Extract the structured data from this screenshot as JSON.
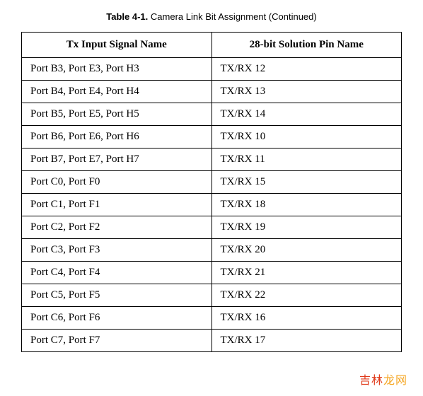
{
  "caption": {
    "label": "Table 4-1.",
    "title": "Camera Link Bit Assignment (Continued)"
  },
  "table": {
    "columns": [
      "Tx Input Signal Name",
      "28-bit Solution Pin Name"
    ],
    "rows": [
      [
        "Port B3, Port E3, Port H3",
        "TX/RX 12"
      ],
      [
        "Port B4, Port E4, Port H4",
        "TX/RX 13"
      ],
      [
        "Port B5, Port E5, Port H5",
        "TX/RX 14"
      ],
      [
        "Port B6, Port E6, Port H6",
        "TX/RX 10"
      ],
      [
        "Port B7, Port E7, Port H7",
        "TX/RX 11"
      ],
      [
        "Port C0, Port F0",
        "TX/RX 15"
      ],
      [
        "Port C1, Port F1",
        "TX/RX 18"
      ],
      [
        "Port C2, Port F2",
        "TX/RX 19"
      ],
      [
        "Port C3, Port F3",
        "TX/RX 20"
      ],
      [
        "Port C4, Port F4",
        "TX/RX 21"
      ],
      [
        "Port C5, Port F5",
        "TX/RX 22"
      ],
      [
        "Port C6, Port F6",
        "TX/RX 16"
      ],
      [
        "Port C7, Port F7",
        "TX/RX 17"
      ]
    ]
  },
  "watermark": {
    "part1": "吉林",
    "part2": "龙网"
  }
}
